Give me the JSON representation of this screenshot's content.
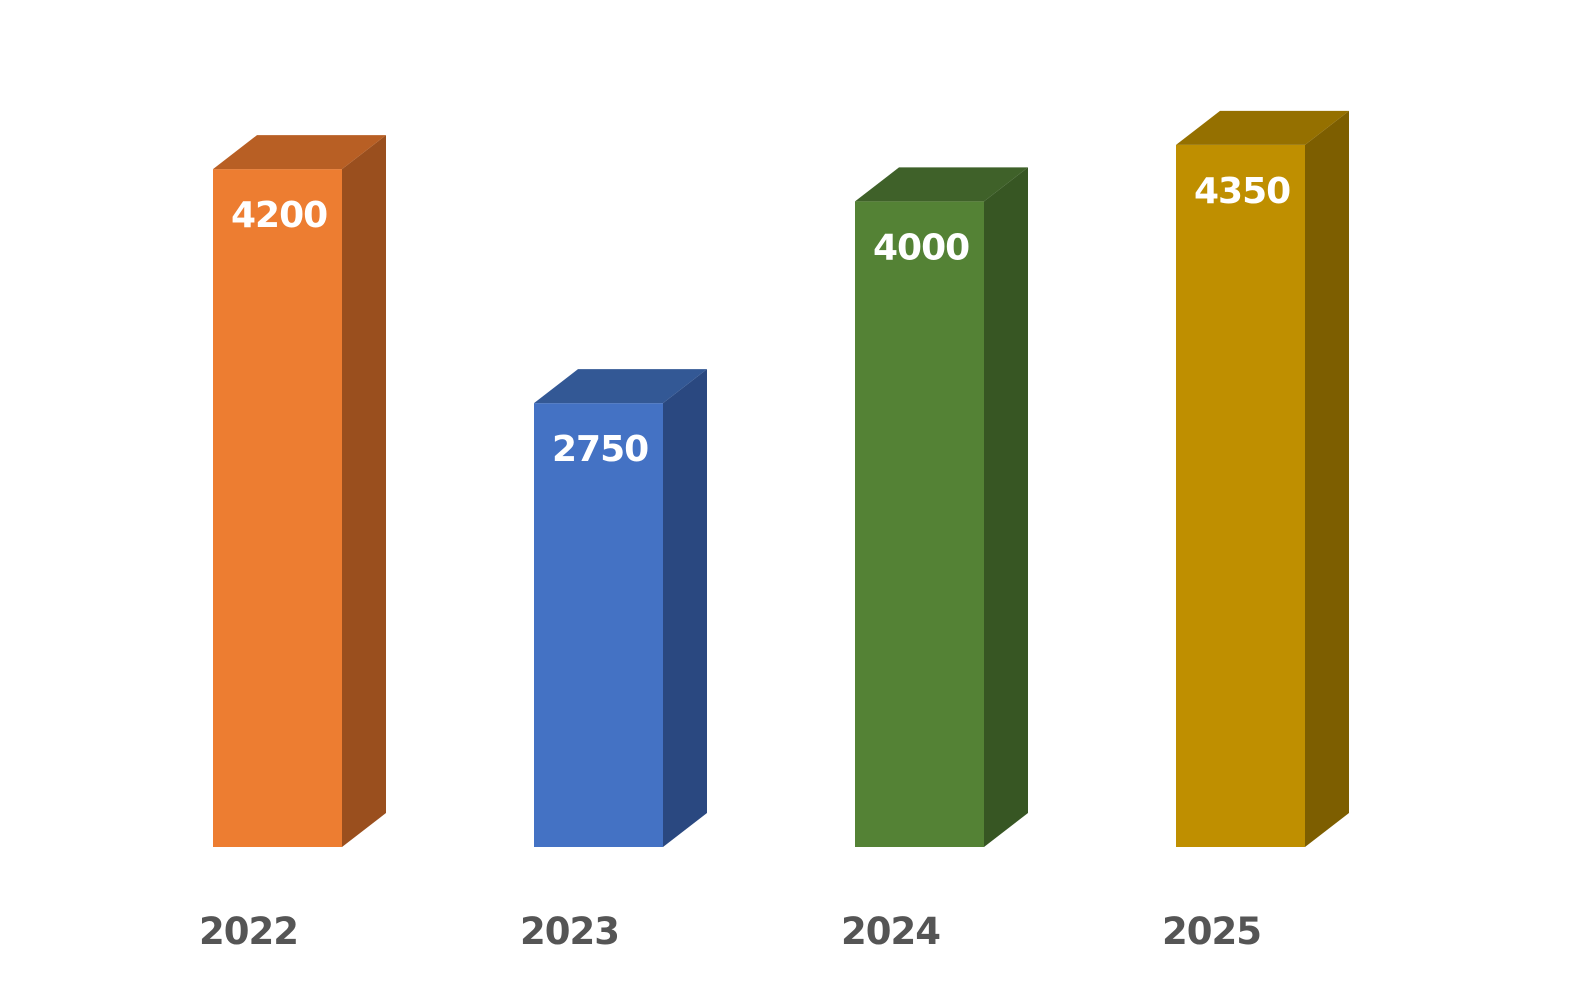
{
  "chart_data": {
    "type": "bar",
    "categories": [
      "2022",
      "2023",
      "2024",
      "2025"
    ],
    "values": [
      4200,
      2750,
      4000,
      4350
    ],
    "title": "",
    "xlabel": "",
    "ylabel": "",
    "ylim": [
      0,
      4500
    ],
    "grid": false,
    "legend": "none",
    "bar_style": "3d-column",
    "data_labels": "inside-top",
    "colors": [
      "#ed7d31",
      "#4472c4",
      "#548235",
      "#bf8f00"
    ],
    "side_colors": [
      "#9a4f1e",
      "#2a4880",
      "#375623",
      "#7d5e00"
    ],
    "top_colors": [
      "#b85f24",
      "#335895",
      "#3f6129",
      "#957000"
    ],
    "category_label_color": "#555555",
    "value_label_color": "#ffffff"
  }
}
